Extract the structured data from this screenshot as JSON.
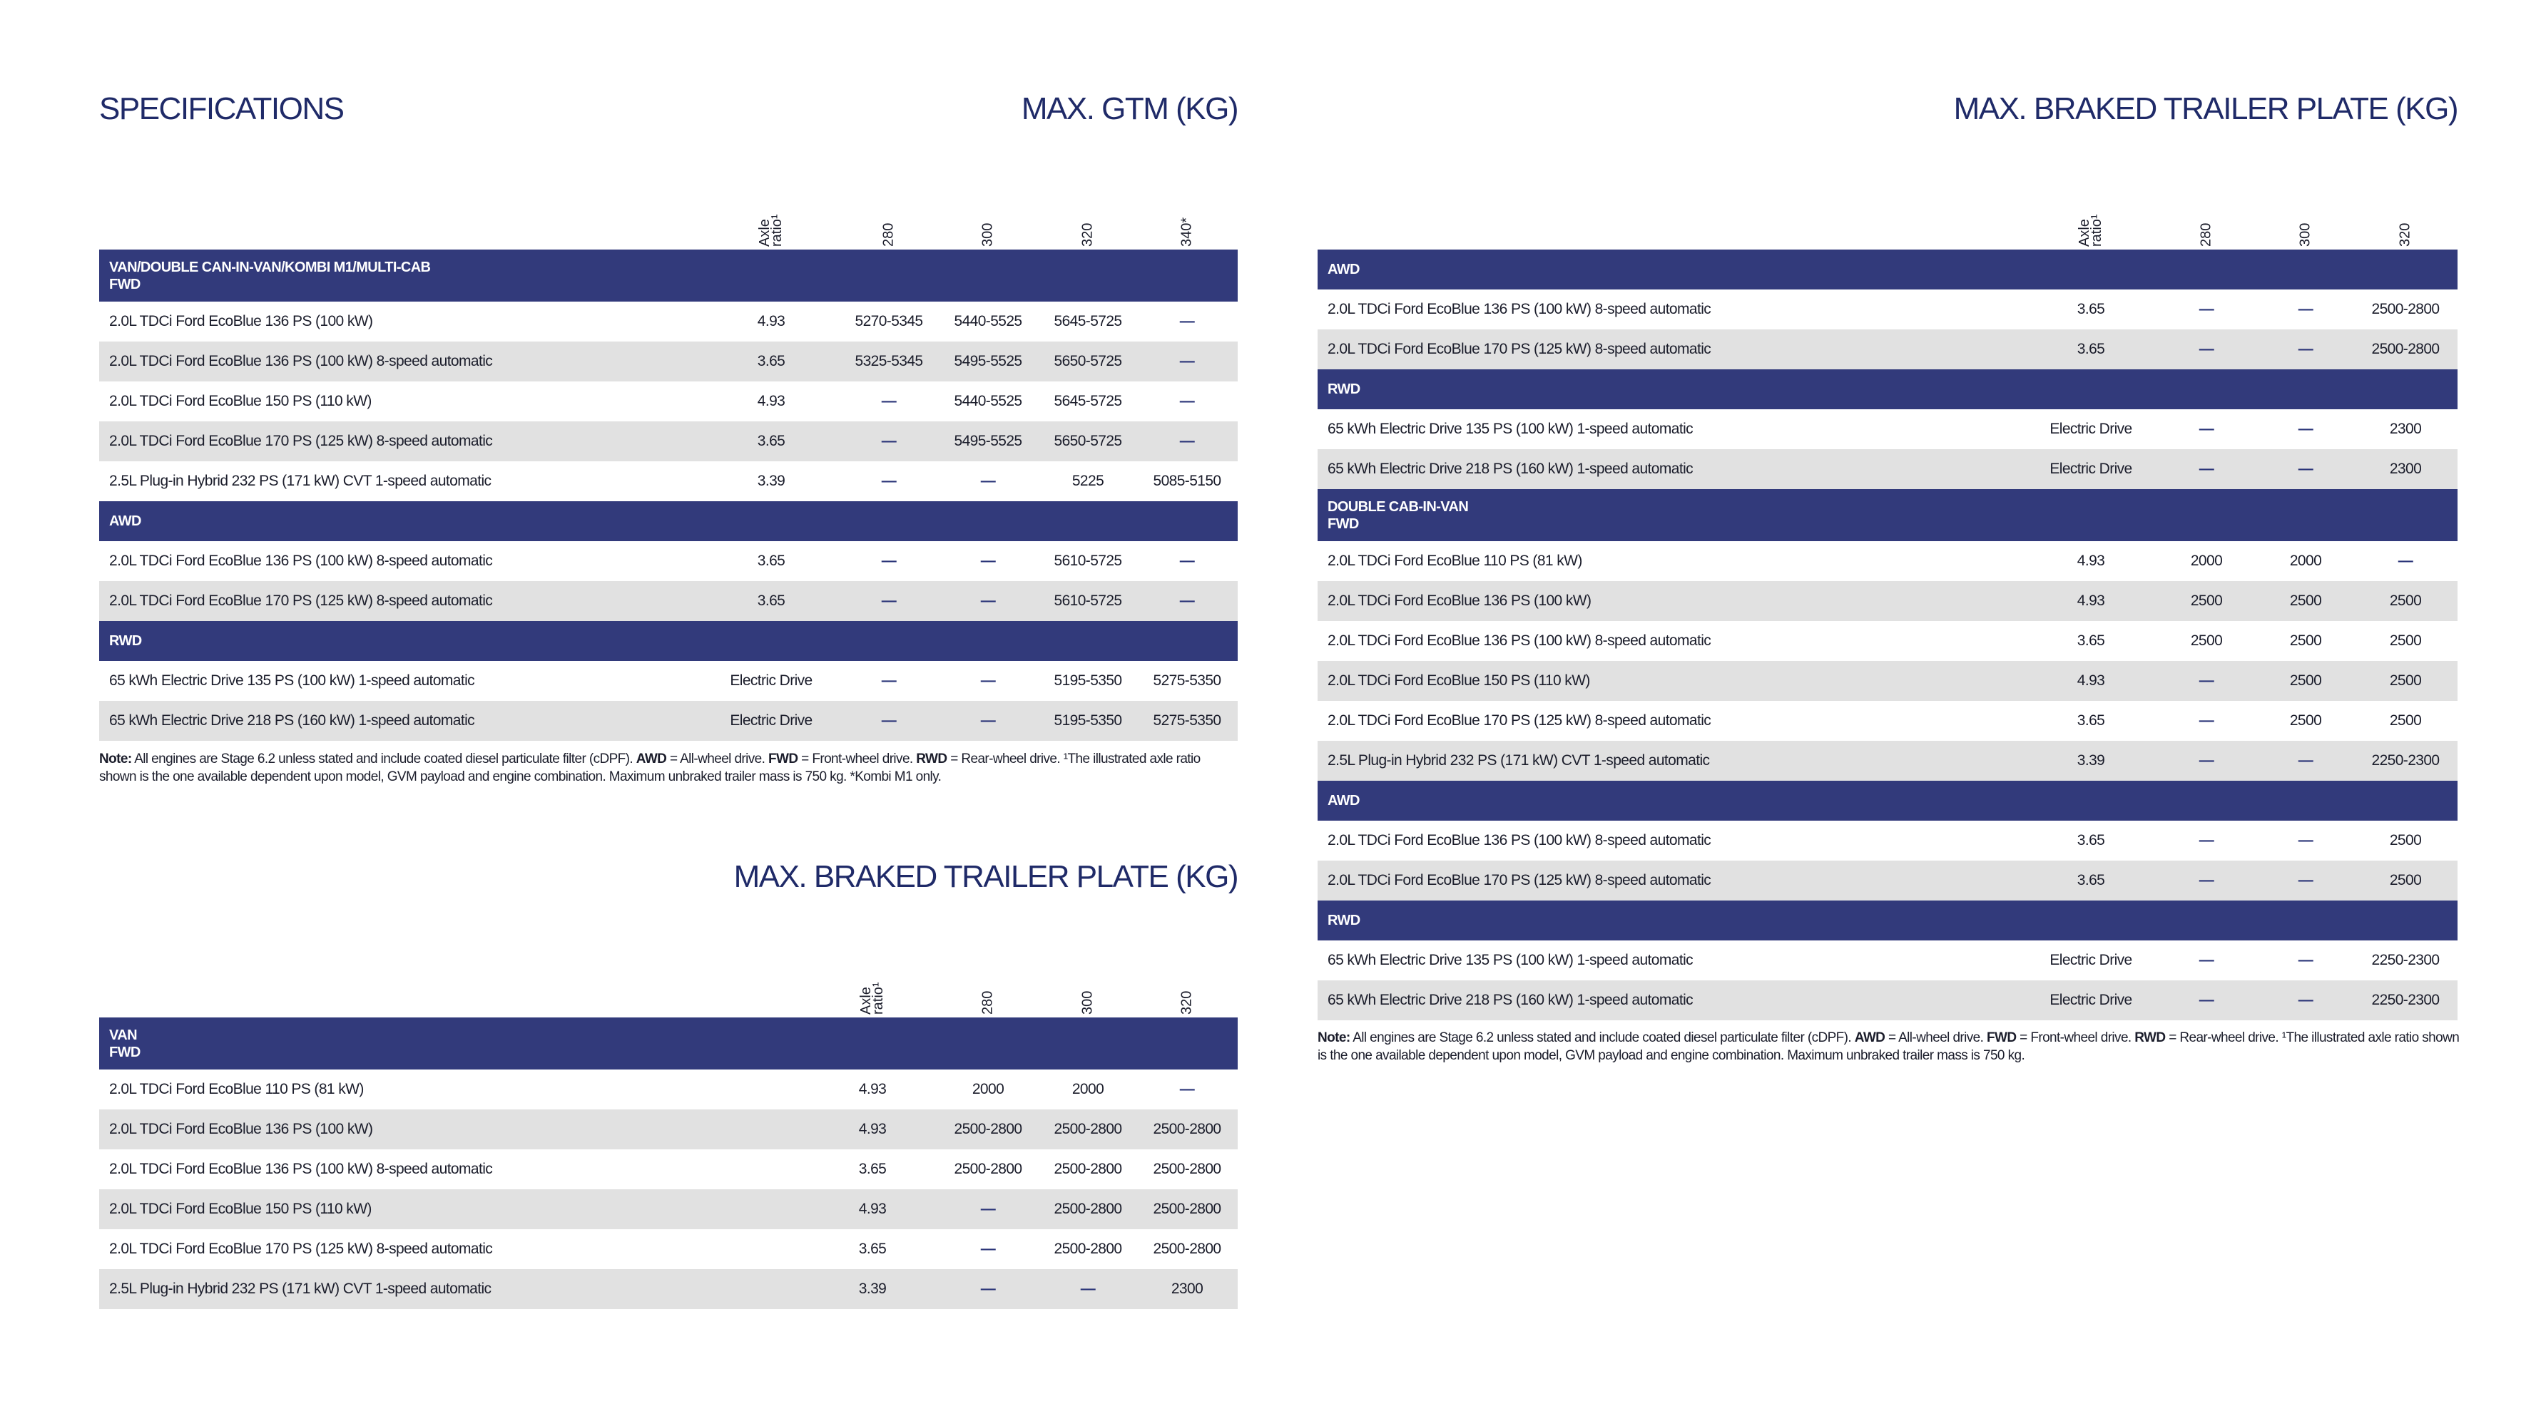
{
  "colors": {
    "band": "#323a7b",
    "stripe": "#e1e1e1",
    "title": "#1f2a68"
  },
  "titles": {
    "specifications": "SPECIFICATIONS",
    "gtm": "MAX. GTM (KG)",
    "trailer_left": "MAX. BRAKED TRAILER PLATE (KG)",
    "trailer_right": "MAX. BRAKED TRAILER PLATE (KG)"
  },
  "tables": [
    {
      "id": "gtm",
      "columns": [
        "Axle\nratio¹",
        "280",
        "300",
        "320",
        "340*"
      ],
      "sections": [
        {
          "header": [
            "VAN/DOUBLE CAN-IN-VAN/KOMBI M1/MULTI-CAB",
            "FWD"
          ],
          "rows": [
            {
              "name": "2.0L TDCi Ford EcoBlue 136 PS (100 kW)",
              "values": [
                "4.93",
                "5270-5345",
                "5440-5525",
                "5645-5725",
                "—"
              ]
            },
            {
              "name": "2.0L TDCi Ford EcoBlue 136 PS (100 kW) 8-speed automatic",
              "values": [
                "3.65",
                "5325-5345",
                "5495-5525",
                "5650-5725",
                "—"
              ]
            },
            {
              "name": "2.0L TDCi Ford EcoBlue 150 PS (110 kW)",
              "values": [
                "4.93",
                "—",
                "5440-5525",
                "5645-5725",
                "—"
              ]
            },
            {
              "name": "2.0L TDCi Ford EcoBlue 170 PS (125 kW) 8-speed automatic",
              "values": [
                "3.65",
                "—",
                "5495-5525",
                "5650-5725",
                "—"
              ]
            },
            {
              "name": "2.5L Plug-in Hybrid 232 PS (171 kW) CVT 1-speed automatic",
              "values": [
                "3.39",
                "—",
                "—",
                "5225",
                "5085-5150"
              ]
            }
          ]
        },
        {
          "header": [
            "AWD"
          ],
          "rows": [
            {
              "name": "2.0L TDCi Ford EcoBlue 136 PS (100 kW) 8-speed automatic",
              "values": [
                "3.65",
                "—",
                "—",
                "5610-5725",
                "—"
              ]
            },
            {
              "name": "2.0L TDCi Ford EcoBlue 170 PS (125 kW) 8-speed automatic",
              "values": [
                "3.65",
                "—",
                "—",
                "5610-5725",
                "—"
              ]
            }
          ]
        },
        {
          "header": [
            "RWD"
          ],
          "rows": [
            {
              "name": "65 kWh Electric Drive 135 PS (100 kW) 1-speed automatic",
              "values": [
                "Electric Drive",
                "—",
                "—",
                "5195-5350",
                "5275-5350"
              ]
            },
            {
              "name": "65 kWh Electric Drive 218 PS (160 kW) 1-speed automatic",
              "values": [
                "Electric Drive",
                "—",
                "—",
                "5195-5350",
                "5275-5350"
              ]
            }
          ]
        }
      ],
      "note": {
        "label": "Note:",
        "text": " All engines are Stage 6.2 unless stated and include coated diesel particulate filter (cDPF). ",
        "awd": "AWD",
        "awd_text": " = All-wheel drive. ",
        "fwd": "FWD",
        "fwd_text": " = Front-wheel drive. ",
        "rwd": "RWD",
        "rwd_text": " = Rear-wheel drive. ¹The illustrated axle ratio shown is the one available dependent upon model, GVM payload and engine combination. Maximum unbraked trailer mass is 750 kg. *Kombi M1 only."
      }
    },
    {
      "id": "trailer_left",
      "columns": [
        "Axle\nratio¹",
        "280",
        "300",
        "320"
      ],
      "sections": [
        {
          "header": [
            "VAN",
            "FWD"
          ],
          "rows": [
            {
              "name": "2.0L TDCi Ford EcoBlue 110 PS (81 kW)",
              "values": [
                "4.93",
                "2000",
                "2000",
                "—"
              ]
            },
            {
              "name": "2.0L TDCi Ford EcoBlue 136 PS (100 kW)",
              "values": [
                "4.93",
                "2500-2800",
                "2500-2800",
                "2500-2800"
              ]
            },
            {
              "name": "2.0L TDCi Ford EcoBlue 136 PS (100 kW) 8-speed automatic",
              "values": [
                "3.65",
                "2500-2800",
                "2500-2800",
                "2500-2800"
              ]
            },
            {
              "name": "2.0L TDCi Ford EcoBlue 150 PS (110 kW)",
              "values": [
                "4.93",
                "—",
                "2500-2800",
                "2500-2800"
              ]
            },
            {
              "name": "2.0L TDCi Ford EcoBlue 170 PS (125 kW) 8-speed automatic",
              "values": [
                "3.65",
                "—",
                "2500-2800",
                "2500-2800"
              ]
            },
            {
              "name": "2.5L Plug-in Hybrid 232 PS (171 kW) CVT 1-speed automatic",
              "values": [
                "3.39",
                "—",
                "—",
                "2300"
              ]
            }
          ]
        }
      ]
    },
    {
      "id": "trailer_right",
      "columns": [
        "Axle\nratio¹",
        "280",
        "300",
        "320"
      ],
      "sections": [
        {
          "header": [
            "AWD"
          ],
          "rows": [
            {
              "name": "2.0L TDCi Ford EcoBlue 136 PS (100 kW) 8-speed automatic",
              "values": [
                "3.65",
                "—",
                "—",
                "2500-2800"
              ]
            },
            {
              "name": "2.0L TDCi Ford EcoBlue 170 PS (125 kW) 8-speed automatic",
              "values": [
                "3.65",
                "—",
                "—",
                "2500-2800"
              ]
            }
          ]
        },
        {
          "header": [
            "RWD"
          ],
          "rows": [
            {
              "name": "65 kWh Electric Drive 135 PS (100 kW) 1-speed automatic",
              "values": [
                "Electric Drive",
                "—",
                "—",
                "2300"
              ]
            },
            {
              "name": "65 kWh Electric Drive 218 PS (160 kW) 1-speed automatic",
              "values": [
                "Electric Drive",
                "—",
                "—",
                "2300"
              ]
            }
          ]
        },
        {
          "header": [
            "DOUBLE CAB-IN-VAN",
            "FWD"
          ],
          "rows": [
            {
              "name": "2.0L TDCi Ford EcoBlue 110 PS (81 kW)",
              "values": [
                "4.93",
                "2000",
                "2000",
                "—"
              ]
            },
            {
              "name": "2.0L TDCi Ford EcoBlue 136 PS (100 kW)",
              "values": [
                "4.93",
                "2500",
                "2500",
                "2500"
              ]
            },
            {
              "name": "2.0L TDCi Ford EcoBlue 136 PS (100 kW) 8-speed automatic",
              "values": [
                "3.65",
                "2500",
                "2500",
                "2500"
              ]
            },
            {
              "name": "2.0L TDCi Ford EcoBlue 150 PS (110 kW)",
              "values": [
                "4.93",
                "—",
                "2500",
                "2500"
              ]
            },
            {
              "name": "2.0L TDCi Ford EcoBlue 170 PS (125 kW) 8-speed automatic",
              "values": [
                "3.65",
                "—",
                "2500",
                "2500"
              ]
            },
            {
              "name": "2.5L Plug-in Hybrid 232 PS (171 kW) CVT 1-speed automatic",
              "values": [
                "3.39",
                "—",
                "—",
                "2250-2300"
              ]
            }
          ]
        },
        {
          "header": [
            "AWD"
          ],
          "rows": [
            {
              "name": "2.0L TDCi Ford EcoBlue 136 PS (100 kW) 8-speed automatic",
              "values": [
                "3.65",
                "—",
                "—",
                "2500"
              ]
            },
            {
              "name": "2.0L TDCi Ford EcoBlue 170 PS (125 kW) 8-speed automatic",
              "values": [
                "3.65",
                "—",
                "—",
                "2500"
              ]
            }
          ]
        },
        {
          "header": [
            "RWD"
          ],
          "rows": [
            {
              "name": "65 kWh Electric Drive 135 PS (100 kW) 1-speed automatic",
              "values": [
                "Electric Drive",
                "—",
                "—",
                "2250-2300"
              ]
            },
            {
              "name": "65 kWh Electric Drive 218 PS (160 kW) 1-speed automatic",
              "values": [
                "Electric Drive",
                "—",
                "—",
                "2250-2300"
              ]
            }
          ]
        }
      ],
      "note": {
        "label": "Note:",
        "text": " All engines are Stage 6.2 unless stated and include coated diesel particulate filter (cDPF). ",
        "awd": "AWD",
        "awd_text": " = All-wheel drive. ",
        "fwd": "FWD",
        "fwd_text": " = Front-wheel drive. ",
        "rwd": "RWD",
        "rwd_text": " = Rear-wheel drive. ¹The illustrated axle ratio shown is the one available dependent upon model, GVM payload and engine combination. Maximum unbraked trailer mass is 750 kg."
      }
    }
  ]
}
